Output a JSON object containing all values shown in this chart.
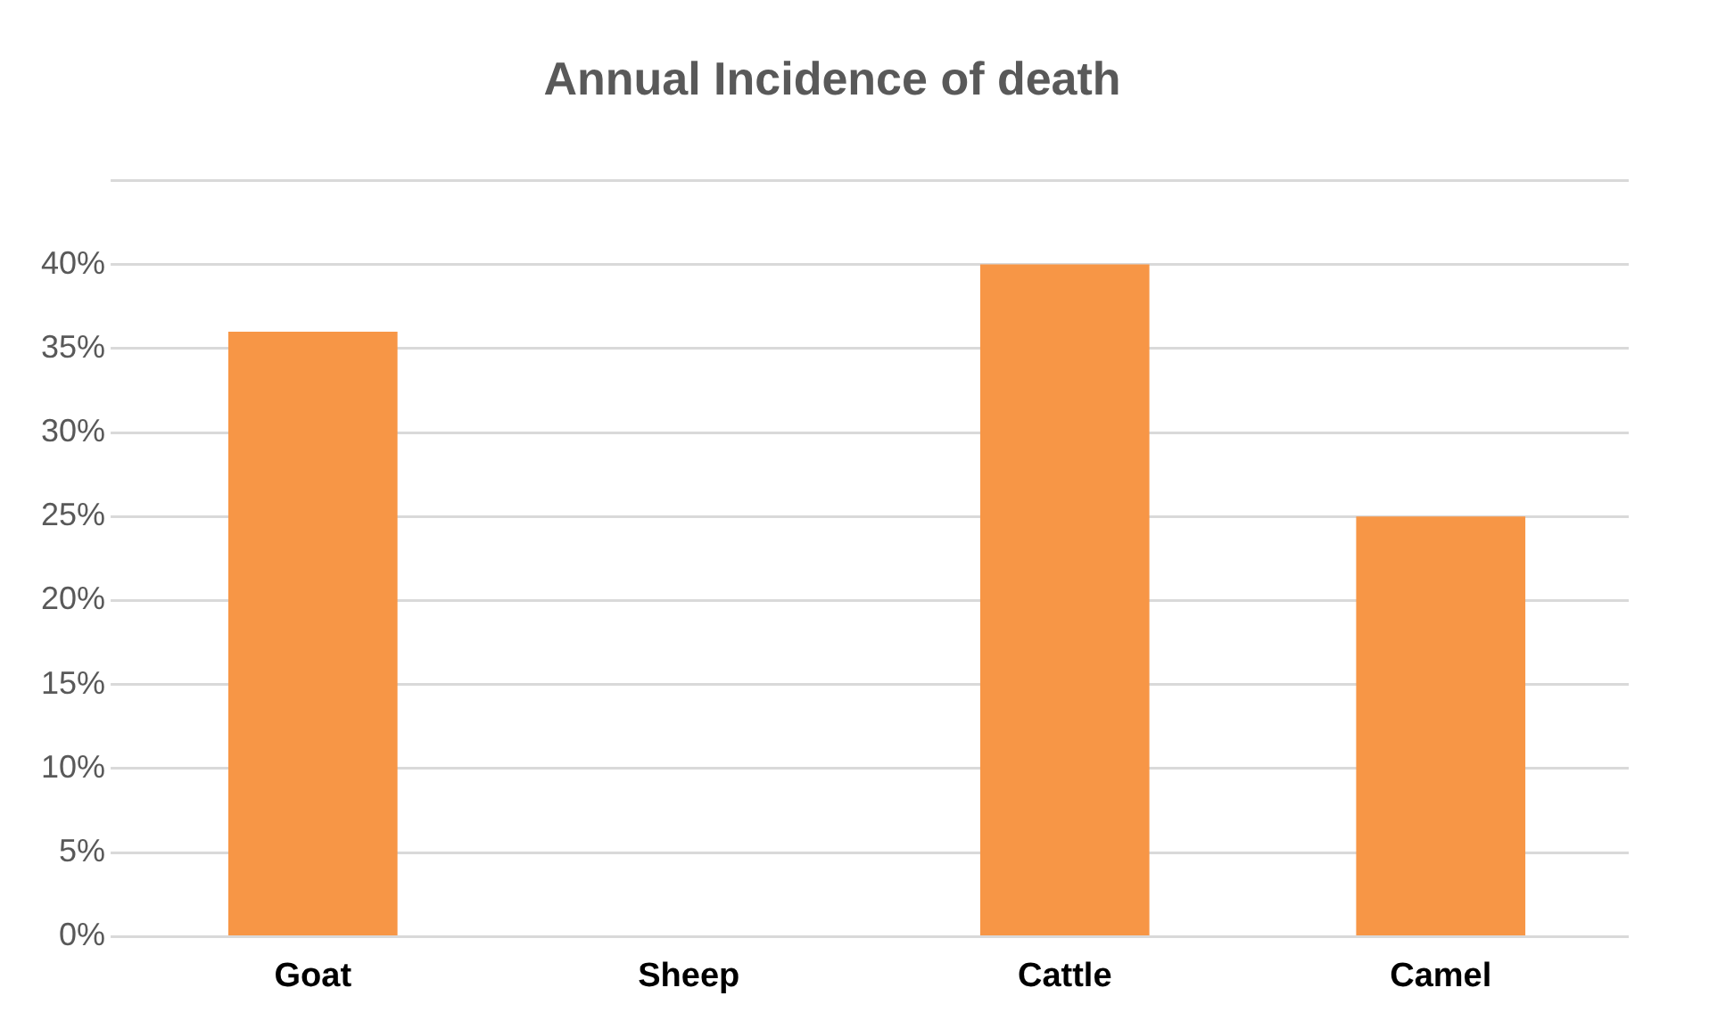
{
  "chart_data": {
    "type": "bar",
    "title": "Annual Incidence of death",
    "categories": [
      "Goat",
      "Sheep",
      "Cattle",
      "Camel"
    ],
    "values": [
      36,
      0,
      40,
      25
    ],
    "color": "#f79646",
    "ylim": [
      0,
      45
    ],
    "yticks": [
      {
        "value": 0,
        "label": "0%"
      },
      {
        "value": 5,
        "label": "5%"
      },
      {
        "value": 10,
        "label": "10%"
      },
      {
        "value": 15,
        "label": "15%"
      },
      {
        "value": 20,
        "label": "20%"
      },
      {
        "value": 25,
        "label": "25%"
      },
      {
        "value": 30,
        "label": "30%"
      },
      {
        "value": 35,
        "label": "35%"
      },
      {
        "value": 40,
        "label": "40%"
      },
      {
        "value": 45,
        "label": null
      }
    ],
    "grid": "y",
    "legend": false
  }
}
